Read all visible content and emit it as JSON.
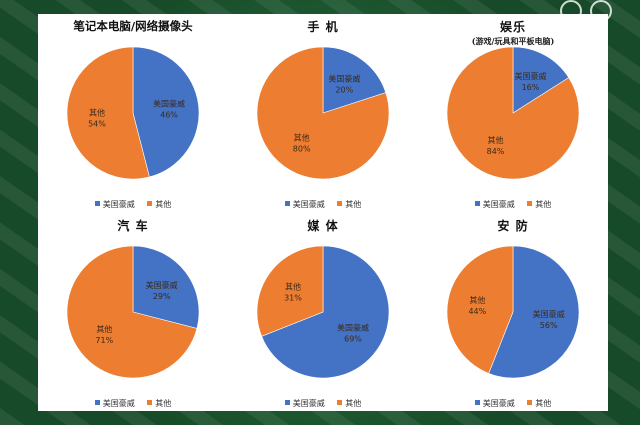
{
  "colors": {
    "us": "#4472c4",
    "other": "#ed7d31"
  },
  "legend_labels": {
    "us": "美国豪威",
    "other": "其他"
  },
  "chart_data": [
    {
      "type": "pie",
      "title": "笔记本电脑/网络摄像头",
      "subtitle": "",
      "slices": [
        {
          "label": "美国豪威",
          "value": 46
        },
        {
          "label": "其他",
          "value": 54
        }
      ]
    },
    {
      "type": "pie",
      "title": "手 机",
      "subtitle": "",
      "slices": [
        {
          "label": "美国豪威",
          "value": 20
        },
        {
          "label": "其他",
          "value": 80
        }
      ]
    },
    {
      "type": "pie",
      "title": "娱乐",
      "subtitle": "(游戏/玩具和平板电脑)",
      "slices": [
        {
          "label": "美国豪威",
          "value": 16
        },
        {
          "label": "其他",
          "value": 84
        }
      ]
    },
    {
      "type": "pie",
      "title": "汽 车",
      "subtitle": "",
      "slices": [
        {
          "label": "美国豪威",
          "value": 29
        },
        {
          "label": "其他",
          "value": 71
        }
      ]
    },
    {
      "type": "pie",
      "title": "媒 体",
      "subtitle": "",
      "slices": [
        {
          "label": "美国豪威",
          "value": 69
        },
        {
          "label": "其他",
          "value": 31
        }
      ]
    },
    {
      "type": "pie",
      "title": "安 防",
      "subtitle": "",
      "slices": [
        {
          "label": "美国豪威",
          "value": 56
        },
        {
          "label": "其他",
          "value": 44
        }
      ]
    }
  ]
}
